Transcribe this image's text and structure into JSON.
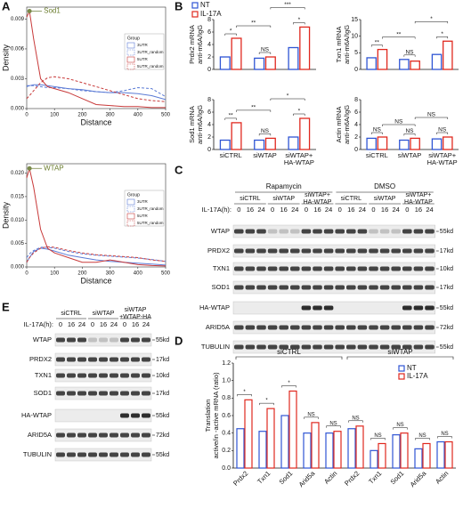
{
  "panel_labels": [
    "A",
    "B",
    "C",
    "D",
    "E"
  ],
  "density_plots": [
    {
      "x_label": "Distance",
      "y_label": "Density",
      "legend_title": "Group",
      "x": [
        0,
        10,
        25,
        50,
        75,
        100,
        150,
        200,
        250,
        300,
        350,
        400,
        450,
        500
      ],
      "xlim": [
        0,
        500
      ],
      "xticks": [
        0,
        100,
        200,
        300,
        400,
        500
      ],
      "ylim": [
        0,
        0.0102
      ],
      "yticks": [
        {
          "value": 0,
          "label": "0.000"
        },
        {
          "value": 0.003,
          "label": "0.003"
        },
        {
          "value": 0.006,
          "label": "0.006"
        },
        {
          "value": 0.009,
          "label": "0.009"
        }
      ],
      "series": [
        {
          "name": "3UTR",
          "color": "#5b7bd5",
          "dashed": false,
          "values": [
            0.0022,
            0.0023,
            0.0024,
            0.0024,
            0.0023,
            0.0022,
            0.002,
            0.0019,
            0.0017,
            0.0016,
            0.0016,
            0.0015,
            0.0013,
            0.0009
          ]
        },
        {
          "name": "3UTR_random",
          "color": "#5b7bd5",
          "dashed": true,
          "values": [
            0.0023,
            0.0023,
            0.0023,
            0.0022,
            0.0021,
            0.0021,
            0.002,
            0.0018,
            0.0017,
            0.0016,
            0.0018,
            0.0021,
            0.002,
            0.0012
          ]
        },
        {
          "name": "5UTR",
          "color": "#c83a3a",
          "dashed": false,
          "values": [
            0.0092,
            0.0098,
            0.007,
            0.003,
            0.0022,
            0.002,
            0.0016,
            0.001,
            0.0004,
            0.0003,
            0.0002,
            0.0002,
            0.0001,
            0.0001
          ]
        },
        {
          "name": "5UTR_random",
          "color": "#c83a3a",
          "dashed": true,
          "values": [
            0.001,
            0.0013,
            0.0018,
            0.0026,
            0.0031,
            0.0032,
            0.003,
            0.0026,
            0.0022,
            0.0018,
            0.0014,
            0.001,
            0.0008,
            0.0007
          ]
        }
      ],
      "annotation": "Sod1"
    },
    {
      "x_label": "Distance",
      "y_label": "Density",
      "legend_title": "Group",
      "x": [
        0,
        10,
        25,
        50,
        75,
        100,
        150,
        200,
        250,
        300,
        350,
        400,
        450,
        500
      ],
      "xlim": [
        0,
        500
      ],
      "xticks": [
        0,
        100,
        200,
        300,
        400,
        500
      ],
      "ylim": [
        0,
        0.022
      ],
      "yticks": [
        {
          "value": 0,
          "label": "0.000"
        },
        {
          "value": 0.005,
          "label": "0.005"
        },
        {
          "value": 0.01,
          "label": "0.010"
        },
        {
          "value": 0.015,
          "label": "0.015"
        },
        {
          "value": 0.02,
          "label": "0.020"
        }
      ],
      "series": [
        {
          "name": "3UTR",
          "color": "#5b7bd5",
          "dashed": false,
          "values": [
            0.001,
            0.002,
            0.0033,
            0.004,
            0.0038,
            0.0034,
            0.0025,
            0.002,
            0.0015,
            0.0012,
            0.001,
            0.0008,
            0.0006,
            0.0004
          ]
        },
        {
          "name": "3UTR_random",
          "color": "#5b7bd5",
          "dashed": true,
          "values": [
            0.002,
            0.0028,
            0.0035,
            0.0042,
            0.0042,
            0.004,
            0.0033,
            0.0028,
            0.0025,
            0.0023,
            0.0021,
            0.0019,
            0.0016,
            0.0012
          ]
        },
        {
          "name": "5UTR",
          "color": "#c83a3a",
          "dashed": false,
          "values": [
            0.019,
            0.021,
            0.017,
            0.008,
            0.004,
            0.003,
            0.002,
            0.001,
            0.001,
            0.0015,
            0.001,
            0.0005,
            0.0003,
            0.0002
          ]
        },
        {
          "name": "5UTR_random",
          "color": "#c83a3a",
          "dashed": true,
          "values": [
            0.001,
            0.002,
            0.003,
            0.004,
            0.0043,
            0.0042,
            0.0035,
            0.003,
            0.0026,
            0.0024,
            0.0022,
            0.002,
            0.0015,
            0.0012
          ]
        }
      ],
      "annotation": "WTAP"
    }
  ],
  "bar_charts": [
    {
      "y_label": [
        "Prdx2 mRNA",
        "anti-m6A/IgG"
      ],
      "ylim": [
        0,
        8
      ],
      "yticks": [
        0,
        2,
        4,
        6,
        8
      ],
      "series": [
        {
          "name": "NT",
          "color": "#2f55d4",
          "values": [
            2,
            1.8,
            3.5
          ]
        },
        {
          "name": "IL-17A",
          "color": "#e0281e",
          "values": [
            5,
            2,
            6.8
          ]
        }
      ],
      "within": [
        "*",
        "NS",
        "*"
      ],
      "between": [
        {
          "label": "**",
          "pair": [
            0,
            1
          ]
        },
        {
          "label": "***",
          "pair": [
            1,
            2
          ]
        }
      ]
    },
    {
      "y_label": [
        "Txn1 mRNA",
        "anti-m6A/IgG"
      ],
      "ylim": [
        0,
        15
      ],
      "yticks": [
        0,
        5,
        10,
        15
      ],
      "series": [
        {
          "name": "NT",
          "color": "#2f55d4",
          "values": [
            3.5,
            3,
            4.5
          ]
        },
        {
          "name": "IL-17A",
          "color": "#e0281e",
          "values": [
            6,
            2.5,
            8.5
          ]
        }
      ],
      "within": [
        "**",
        "NS",
        "*"
      ],
      "between": [
        {
          "label": "**",
          "pair": [
            0,
            1
          ]
        },
        {
          "label": "*",
          "pair": [
            1,
            2
          ]
        }
      ]
    },
    {
      "y_label": [
        "Sod1 mRNA",
        "anti-m6A/IgG"
      ],
      "ylim": [
        0,
        8
      ],
      "yticks": [
        0,
        2,
        4,
        6,
        8
      ],
      "groups": [
        [
          "siCTRL"
        ],
        [
          "siWTAP"
        ],
        [
          "siWTAP+",
          "HA-WTAP"
        ]
      ],
      "series": [
        {
          "name": "NT",
          "color": "#2f55d4",
          "values": [
            1.5,
            1.5,
            2
          ]
        },
        {
          "name": "IL-17A",
          "color": "#e0281e",
          "values": [
            4.3,
            1.8,
            5
          ]
        }
      ],
      "within": [
        "**",
        "NS",
        "*"
      ],
      "between": [
        {
          "label": "**",
          "pair": [
            0,
            1
          ]
        },
        {
          "label": "*",
          "pair": [
            1,
            2
          ]
        }
      ]
    },
    {
      "y_label": [
        "Actin mRNA",
        "anti-m6A/IgG"
      ],
      "ylim": [
        0,
        8
      ],
      "yticks": [
        0,
        2,
        4,
        6,
        8
      ],
      "groups": [
        [
          "siCTRL"
        ],
        [
          "siWTAP"
        ],
        [
          "siWTAP+",
          "HA-WTAP"
        ]
      ],
      "series": [
        {
          "name": "NT",
          "color": "#2f55d4",
          "values": [
            1.8,
            1.5,
            1.7
          ]
        },
        {
          "name": "IL-17A",
          "color": "#e0281e",
          "values": [
            2,
            1.8,
            2
          ]
        }
      ],
      "within": [
        "NS",
        "NS",
        "NS"
      ],
      "between": [
        {
          "label": "NS",
          "pair": [
            0,
            1
          ]
        },
        {
          "label": "NS",
          "pair": [
            1,
            2
          ]
        }
      ]
    }
  ],
  "blot_c": {
    "treatments": [
      "Rapamycin",
      "DMSO"
    ],
    "groups": [
      [
        "siCTRL"
      ],
      [
        "siWTAP"
      ],
      [
        "siWTAP+",
        "HA-WTAP"
      ],
      [
        "siCTRL"
      ],
      [
        "siWTAP"
      ],
      [
        "siWTAP+",
        "HA-WTAP"
      ]
    ],
    "time_label": "IL-17A(h):",
    "times": [
      0,
      16,
      24
    ],
    "rows": [
      {
        "name": "WTAP",
        "kd": "55kd"
      },
      {
        "name": "PRDX2",
        "kd": "17kd"
      },
      {
        "name": "TXN1",
        "kd": "10kd"
      },
      {
        "name": "SOD1",
        "kd": "17kd"
      },
      {
        "name": "HA-WTAP",
        "kd": "55kd"
      },
      {
        "name": "ARID5A",
        "kd": "72kd"
      },
      {
        "name": "TUBULIN",
        "kd": "55kd"
      }
    ]
  },
  "blot_e": {
    "groups": [
      [
        "siCTRL"
      ],
      [
        "siWTAP"
      ],
      [
        "siWTAP",
        "+WTAP-HA"
      ]
    ],
    "time_label": "IL-17A(h):",
    "times": [
      0,
      16,
      24
    ],
    "rows": [
      {
        "name": "WTAP",
        "kd": "55kd"
      },
      {
        "name": "PRDX2",
        "kd": "17kd"
      },
      {
        "name": "TXN1",
        "kd": "10kd"
      },
      {
        "name": "SOD1",
        "kd": "17kd"
      },
      {
        "name": "HA-WTAP",
        "kd": "55kd"
      },
      {
        "name": "ARID5A",
        "kd": "72kd"
      },
      {
        "name": "TUBULIN",
        "kd": "55kd"
      }
    ]
  },
  "translation": {
    "y_label": [
      "Translation",
      "active/in -active mRNA (ratio)"
    ],
    "ylim": [
      0,
      1.2
    ],
    "yticks": [
      {
        "value": 0,
        "label": "0.0"
      },
      {
        "value": 0.2,
        "label": "0.2"
      },
      {
        "value": 0.4,
        "label": "0.4"
      },
      {
        "value": 0.6,
        "label": "0.6"
      },
      {
        "value": 0.8,
        "label": "0.8"
      },
      {
        "value": 1.0,
        "label": "1.0"
      },
      {
        "value": 1.2,
        "label": "1.2"
      }
    ],
    "groups": [
      {
        "label": "siCTRL",
        "categories": [
          "Prdx2",
          "Txn1",
          "Sod1",
          "Arid5a",
          "Actin"
        ],
        "sig": [
          "*",
          "*",
          "*",
          "NS",
          "NS"
        ]
      },
      {
        "label": "siWTAP",
        "categories": [
          "Prdx2",
          "Txn1",
          "Sod1",
          "Arid5a",
          "Actin"
        ],
        "sig": [
          "NS",
          "NS",
          "NS",
          "NS",
          "NS"
        ]
      }
    ],
    "series": [
      {
        "name": "NT",
        "color": "#2f55d4",
        "values": [
          0.45,
          0.42,
          0.6,
          0.4,
          0.4,
          0.45,
          0.2,
          0.38,
          0.22,
          0.3
        ]
      },
      {
        "name": "IL-17A",
        "color": "#e0281e",
        "values": [
          0.78,
          0.68,
          0.88,
          0.52,
          0.42,
          0.48,
          0.28,
          0.4,
          0.28,
          0.3
        ]
      }
    ]
  }
}
